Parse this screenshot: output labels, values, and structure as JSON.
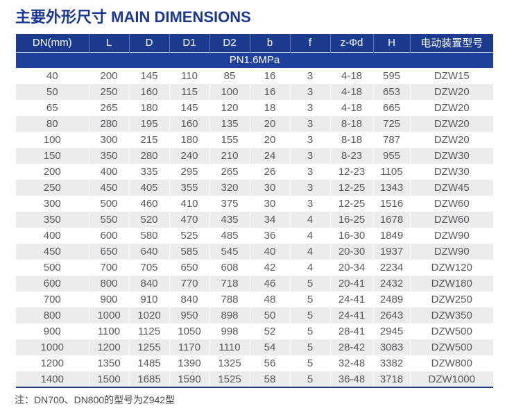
{
  "title": "主要外形尺寸 MAIN DIMENSIONS",
  "table": {
    "headers": [
      "DN(mm)",
      "L",
      "D",
      "D1",
      "D2",
      "b",
      "f",
      "z-Φd",
      "H",
      "电动装置型号"
    ],
    "group_row_label": "PN1.6MPa",
    "rows": [
      [
        "40",
        "200",
        "145",
        "110",
        "85",
        "16",
        "3",
        "4-18",
        "595",
        "DZW15"
      ],
      [
        "50",
        "250",
        "160",
        "115",
        "100",
        "16",
        "3",
        "4-18",
        "653",
        "DZW20"
      ],
      [
        "65",
        "265",
        "180",
        "145",
        "120",
        "18",
        "3",
        "4-18",
        "665",
        "DZW20"
      ],
      [
        "80",
        "280",
        "195",
        "160",
        "135",
        "20",
        "3",
        "8-18",
        "725",
        "DZW20"
      ],
      [
        "100",
        "300",
        "215",
        "180",
        "155",
        "20",
        "3",
        "8-18",
        "787",
        "DZW20"
      ],
      [
        "150",
        "350",
        "280",
        "240",
        "210",
        "24",
        "3",
        "8-23",
        "955",
        "DZW30"
      ],
      [
        "200",
        "400",
        "335",
        "295",
        "265",
        "26",
        "3",
        "12-23",
        "1105",
        "DZW30"
      ],
      [
        "250",
        "450",
        "405",
        "355",
        "320",
        "30",
        "3",
        "12-25",
        "1343",
        "DZW45"
      ],
      [
        "300",
        "500",
        "460",
        "410",
        "375",
        "30",
        "3",
        "12-25",
        "1516",
        "DZW60"
      ],
      [
        "350",
        "550",
        "520",
        "470",
        "435",
        "34",
        "4",
        "16-25",
        "1678",
        "DZW60"
      ],
      [
        "400",
        "600",
        "580",
        "525",
        "485",
        "36",
        "4",
        "16-30",
        "1849",
        "DZW90"
      ],
      [
        "450",
        "650",
        "640",
        "585",
        "545",
        "40",
        "4",
        "20-30",
        "1937",
        "DZW90"
      ],
      [
        "500",
        "700",
        "705",
        "650",
        "608",
        "42",
        "4",
        "20-34",
        "2234",
        "DZW120"
      ],
      [
        "600",
        "800",
        "840",
        "770",
        "718",
        "46",
        "5",
        "20-41",
        "2432",
        "DZW180"
      ],
      [
        "700",
        "900",
        "910",
        "840",
        "788",
        "48",
        "5",
        "24-41",
        "2489",
        "DZW250"
      ],
      [
        "800",
        "1000",
        "1020",
        "950",
        "898",
        "50",
        "5",
        "24-41",
        "2643",
        "DZW350"
      ],
      [
        "900",
        "1100",
        "1125",
        "1050",
        "998",
        "52",
        "5",
        "28-41",
        "2945",
        "DZW500"
      ],
      [
        "1000",
        "1200",
        "1255",
        "1170",
        "1110",
        "54",
        "5",
        "28-42",
        "3083",
        "DZW500"
      ],
      [
        "1200",
        "1350",
        "1485",
        "1390",
        "1325",
        "56",
        "5",
        "32-48",
        "3382",
        "DZW800"
      ],
      [
        "1400",
        "1500",
        "1685",
        "1590",
        "1525",
        "58",
        "5",
        "36-48",
        "3718",
        "DZW1000"
      ]
    ]
  },
  "note": "注：DN700、DN800的型号为Z942型",
  "colors": {
    "header_bg": "#1c3b8e",
    "group_bg": "#1e419c",
    "row_alt_bg": "#ececee",
    "title_color": "#1b3894",
    "data_text": "#55585d",
    "note_text": "#45484d"
  }
}
